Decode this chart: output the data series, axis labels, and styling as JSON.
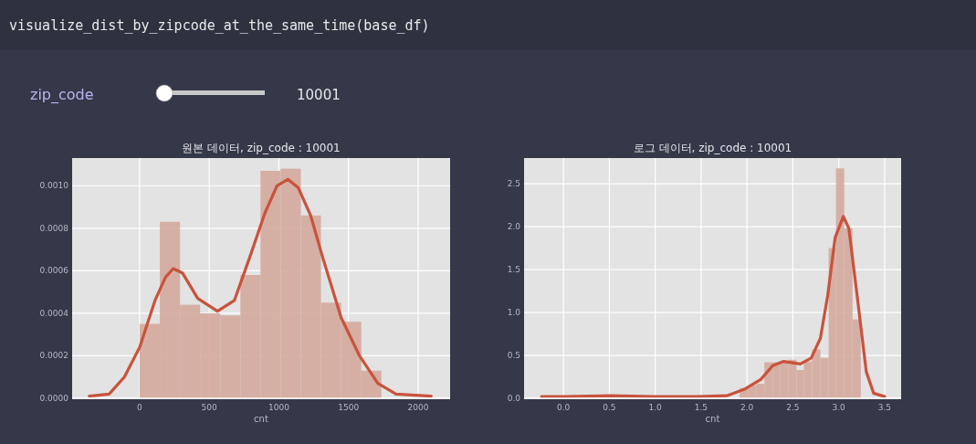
{
  "chart_data": [
    {
      "type": "histogram",
      "title": "원본 데이터, zip_code : 10001",
      "xlabel": "cnt",
      "annotations": [
        "visualize_dist_by_zipcode_at_the_same_time(base_df)",
        "zip_code",
        "10001"
      ],
      "color": "#d4a89c",
      "bins": [
        0,
        145,
        290,
        434,
        579,
        724,
        868,
        1013,
        1158,
        1302,
        1447,
        1592,
        1736
      ],
      "values": [
        0.00035,
        0.00083,
        0.00044,
        0.0004,
        0.00039,
        0.00058,
        0.00107,
        0.00108,
        0.00086,
        0.00045,
        0.00036,
        0.00013
      ],
      "series": [
        {
          "type": "line",
          "color": "#c8533c",
          "x": [
            -362,
            -219,
            -110,
            0,
            110,
            186,
            241,
            307,
            417,
            559,
            680,
            789,
            899,
            987,
            1064,
            1140,
            1228,
            1316,
            1447,
            1579,
            1711,
            1842,
            2094
          ],
          "values": [
            1e-05,
            2e-05,
            0.0001,
            0.00024,
            0.00046,
            0.00057,
            0.00061,
            0.00059,
            0.00047,
            0.00041,
            0.00046,
            0.00066,
            0.00087,
            0.001,
            0.00103,
            0.00099,
            0.00086,
            0.00066,
            0.00038,
            0.0002,
            7e-05,
            2e-05,
            1e-05
          ]
        }
      ],
      "xlim": [
        -485,
        2230
      ],
      "ylim": [
        0,
        0.00113
      ],
      "xticks": [
        0,
        500,
        1000,
        1500,
        2000
      ],
      "yticks": [
        {
          "value": 0,
          "label": "0.0000"
        },
        {
          "value": 0.0002,
          "label": "0.0002"
        },
        {
          "value": 0.0004,
          "label": "0.0004"
        },
        {
          "value": 0.0006,
          "label": "0.0006"
        },
        {
          "value": 0.0008,
          "label": "0.0008"
        },
        {
          "value": 0.001,
          "label": "0.0010"
        }
      ],
      "grid": true
    },
    {
      "type": "histogram",
      "title": "로그 데이터, zip_code : 10001",
      "xlabel": "cnt",
      "color": "#d4a89c",
      "bins": [
        1.92,
        2.01,
        2.1,
        2.19,
        2.28,
        2.36,
        2.45,
        2.54,
        2.62,
        2.71,
        2.8,
        2.89,
        2.97,
        3.06,
        3.15,
        3.24
      ],
      "values": [
        0.12,
        0.15,
        0.17,
        0.42,
        0.42,
        0.43,
        0.45,
        0.33,
        0.43,
        0.57,
        0.47,
        1.75,
        2.68,
        1.98,
        0.92
      ],
      "series": [
        {
          "type": "line",
          "color": "#c8533c",
          "x": [
            -0.24,
            0,
            0.52,
            0.99,
            1.45,
            1.78,
            1.98,
            2.15,
            2.28,
            2.4,
            2.58,
            2.7,
            2.8,
            2.88,
            2.96,
            3.05,
            3.11,
            3.2,
            3.3,
            3.38,
            3.5
          ],
          "values": [
            0.02,
            0.02,
            0.03,
            0.02,
            0.02,
            0.03,
            0.11,
            0.22,
            0.38,
            0.43,
            0.4,
            0.47,
            0.7,
            1.2,
            1.87,
            2.12,
            1.98,
            1.2,
            0.31,
            0.06,
            0.02
          ]
        }
      ],
      "xlim": [
        -0.43,
        3.68
      ],
      "ylim": [
        0,
        2.8
      ],
      "xticks": [
        {
          "value": 0,
          "label": "0.0"
        },
        {
          "value": 0.5,
          "label": "0.5"
        },
        {
          "value": 1,
          "label": "1.0"
        },
        {
          "value": 1.5,
          "label": "1.5"
        },
        {
          "value": 2,
          "label": "2.0"
        },
        {
          "value": 2.5,
          "label": "2.5"
        },
        {
          "value": 3,
          "label": "3.0"
        },
        {
          "value": 3.5,
          "label": "3.5"
        }
      ],
      "yticks": [
        {
          "value": 0,
          "label": "0.0"
        },
        {
          "value": 0.5,
          "label": "0.5"
        },
        {
          "value": 1,
          "label": "1.0"
        },
        {
          "value": 1.5,
          "label": "1.5"
        },
        {
          "value": 2,
          "label": "2.0"
        },
        {
          "value": 2.5,
          "label": "2.5"
        }
      ],
      "grid": true
    }
  ]
}
